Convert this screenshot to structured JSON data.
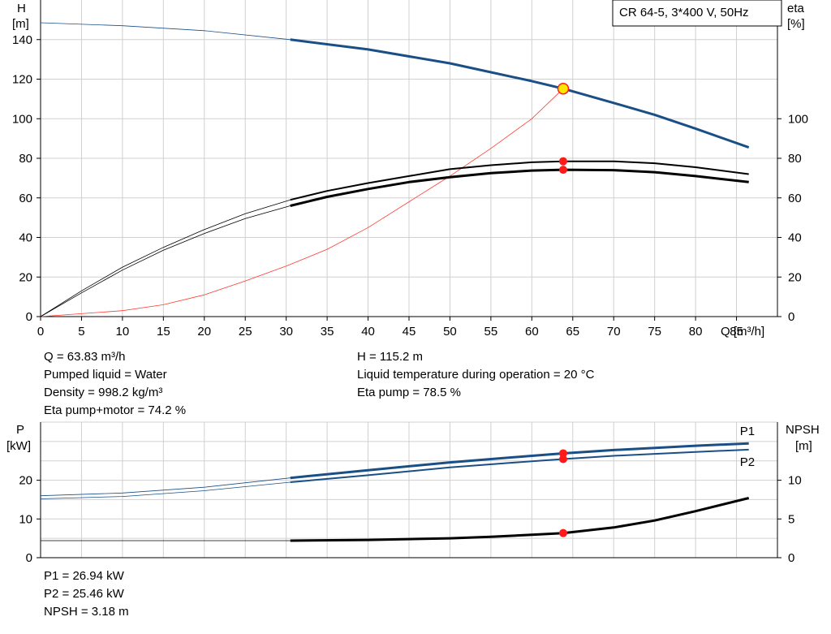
{
  "title": "CR 64-5, 3*400 V, 50Hz",
  "colors": {
    "grid": "#d0d0d0",
    "blue": "#1a4f86",
    "black": "#000000",
    "red": "#ff3b30",
    "dot_red": "#ff1a1a",
    "dot_yellow": "#ffe600"
  },
  "info_top": [
    [
      "Q = 63.83 m³/h",
      "Pumped liquid = Water",
      "Density = 998.2 kg/m³",
      "Eta pump+motor = 74.2 %"
    ],
    [
      "H = 115.2 m",
      "Liquid temperature during operation = 20 °C",
      "Eta pump = 78.5 %"
    ]
  ],
  "info_bottom": [
    "P1 = 26.94 kW",
    "P2 = 25.46 kW",
    "NPSH = 3.18 m"
  ],
  "chart_data": [
    {
      "type": "line",
      "y_label": [
        "H",
        "[m]"
      ],
      "y2_label": [
        "eta",
        "[%]"
      ],
      "x_label": "Q [m³/h]",
      "xlim": [
        0,
        90
      ],
      "xticks": [
        0,
        5,
        10,
        15,
        20,
        25,
        30,
        35,
        40,
        45,
        50,
        55,
        60,
        65,
        70,
        75,
        80,
        85
      ],
      "ylim": [
        0,
        160
      ],
      "yticks": [
        0,
        20,
        40,
        60,
        80,
        100,
        120,
        140
      ],
      "y2ticks": [
        0,
        20,
        40,
        60,
        80,
        100
      ],
      "duty_point": {
        "q": 63.83,
        "h": 115.2,
        "eta_pump": 78.5,
        "eta_total": 74.2
      },
      "series": [
        {
          "role": "head",
          "operating_from": 30.5,
          "points": [
            [
              0,
              148.5
            ],
            [
              10,
              147
            ],
            [
              20,
              144.5
            ],
            [
              30.5,
              140
            ],
            [
              40,
              135
            ],
            [
              50,
              128
            ],
            [
              55,
              123.5
            ],
            [
              60,
              119
            ],
            [
              63.83,
              115.2
            ],
            [
              70,
              108
            ],
            [
              75,
              102
            ],
            [
              80,
              95
            ],
            [
              86.5,
              85.5
            ]
          ]
        },
        {
          "role": "eta_pump",
          "operating_from": 30.5,
          "points": [
            [
              0,
              0
            ],
            [
              5,
              13
            ],
            [
              10,
              25
            ],
            [
              15,
              35
            ],
            [
              20,
              44
            ],
            [
              25,
              52
            ],
            [
              30.5,
              59
            ],
            [
              35,
              63.5
            ],
            [
              40,
              67.5
            ],
            [
              45,
              71
            ],
            [
              50,
              74.5
            ],
            [
              55,
              76.5
            ],
            [
              60,
              78
            ],
            [
              63.83,
              78.5
            ],
            [
              70,
              78.5
            ],
            [
              75,
              77.5
            ],
            [
              80,
              75.5
            ],
            [
              86.5,
              72
            ]
          ]
        },
        {
          "role": "eta_total",
          "operating_from": 30.5,
          "points": [
            [
              0,
              0
            ],
            [
              5,
              12
            ],
            [
              10,
              23.5
            ],
            [
              15,
              33.5
            ],
            [
              20,
              42
            ],
            [
              25,
              49.5
            ],
            [
              30.5,
              56
            ],
            [
              35,
              60.5
            ],
            [
              40,
              64.5
            ],
            [
              45,
              68
            ],
            [
              50,
              70.5
            ],
            [
              55,
              72.5
            ],
            [
              60,
              73.8
            ],
            [
              63.83,
              74.2
            ],
            [
              70,
              74
            ],
            [
              75,
              73
            ],
            [
              80,
              71
            ],
            [
              86.5,
              68
            ]
          ]
        },
        {
          "role": "system",
          "points": [
            [
              0,
              0
            ],
            [
              10,
              3
            ],
            [
              15,
              6
            ],
            [
              20,
              11
            ],
            [
              25,
              18
            ],
            [
              30,
              25.5
            ],
            [
              35,
              34
            ],
            [
              40,
              45
            ],
            [
              45,
              58
            ],
            [
              50,
              71
            ],
            [
              55,
              85
            ],
            [
              60,
              100
            ],
            [
              63.83,
              115.2
            ]
          ]
        }
      ]
    },
    {
      "type": "line",
      "y_label": [
        "P",
        "[kW]"
      ],
      "y2_label": [
        "NPSH",
        "[m]"
      ],
      "xlim": [
        0,
        90
      ],
      "ylim": [
        0,
        35
      ],
      "yticks": [
        0,
        10,
        20
      ],
      "y2lim": [
        0,
        17.5
      ],
      "y2ticks": [
        0,
        5,
        10
      ],
      "duty_point": {
        "q": 63.83,
        "p1": 26.94,
        "p2": 25.46,
        "npsh": 3.18
      },
      "series": [
        {
          "name": "P1",
          "role": "p1",
          "operating_from": 30.5,
          "points": [
            [
              0,
              16
            ],
            [
              10,
              16.7
            ],
            [
              20,
              18.2
            ],
            [
              30.5,
              20.6
            ],
            [
              40,
              22.6
            ],
            [
              50,
              24.6
            ],
            [
              60,
              26.3
            ],
            [
              63.83,
              26.94
            ],
            [
              70,
              27.8
            ],
            [
              80,
              28.9
            ],
            [
              86.5,
              29.5
            ]
          ]
        },
        {
          "name": "P2",
          "role": "p2",
          "operating_from": 30.5,
          "points": [
            [
              0,
              15.2
            ],
            [
              10,
              15.8
            ],
            [
              20,
              17.3
            ],
            [
              30.5,
              19.5
            ],
            [
              40,
              21.3
            ],
            [
              50,
              23.3
            ],
            [
              60,
              24.9
            ],
            [
              63.83,
              25.46
            ],
            [
              70,
              26.3
            ],
            [
              80,
              27.3
            ],
            [
              86.5,
              27.9
            ]
          ]
        },
        {
          "role": "npsh",
          "operating_from": 30.5,
          "points": [
            [
              0,
              2.2
            ],
            [
              15,
              2.2
            ],
            [
              30.5,
              2.2
            ],
            [
              40,
              2.3
            ],
            [
              50,
              2.5
            ],
            [
              55,
              2.7
            ],
            [
              60,
              2.95
            ],
            [
              63.83,
              3.18
            ],
            [
              70,
              3.9
            ],
            [
              75,
              4.8
            ],
            [
              80,
              6
            ],
            [
              86.5,
              7.7
            ]
          ]
        }
      ]
    }
  ]
}
